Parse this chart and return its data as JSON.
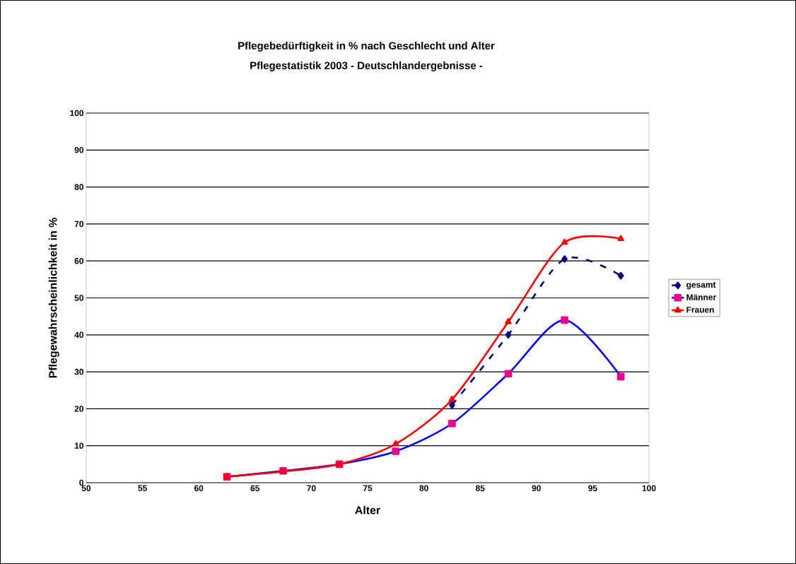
{
  "chart_data": {
    "type": "line",
    "title": "Pflegebedürftigkeit in % nach Geschlecht und Alter",
    "subtitle": "Pflegestatistik 2003    - Deutschlandergebnisse -",
    "xlabel": "Alter",
    "ylabel": "Pflegewahrscheinlichkeit in %",
    "x": [
      62.5,
      67.5,
      72.5,
      77.5,
      82.5,
      87.5,
      92.5,
      97.5
    ],
    "series": [
      {
        "name": "gesamt",
        "color": "#000080",
        "marker": "diamond",
        "line_style": "dashed",
        "values": [
          null,
          null,
          null,
          null,
          21,
          40,
          60.5,
          56
        ]
      },
      {
        "name": "Männer",
        "color": "#0000ff",
        "marker": "square",
        "line_style": "solid",
        "values": [
          1.6,
          3.2,
          5,
          8.5,
          16,
          29.5,
          44,
          28.7
        ]
      },
      {
        "name": "Frauen",
        "color": "#ff0000",
        "marker": "triangle",
        "line_style": "solid",
        "values": [
          1.6,
          3,
          5,
          10.5,
          22.5,
          43.5,
          65,
          66
        ]
      }
    ],
    "xlim": [
      50,
      100
    ],
    "ylim": [
      0,
      100
    ],
    "xticks": [
      50,
      55,
      60,
      65,
      70,
      75,
      80,
      85,
      90,
      95,
      100
    ],
    "yticks": [
      0,
      10,
      20,
      30,
      40,
      50,
      60,
      70,
      80,
      90,
      100
    ],
    "grid": "y",
    "legend": "right"
  }
}
